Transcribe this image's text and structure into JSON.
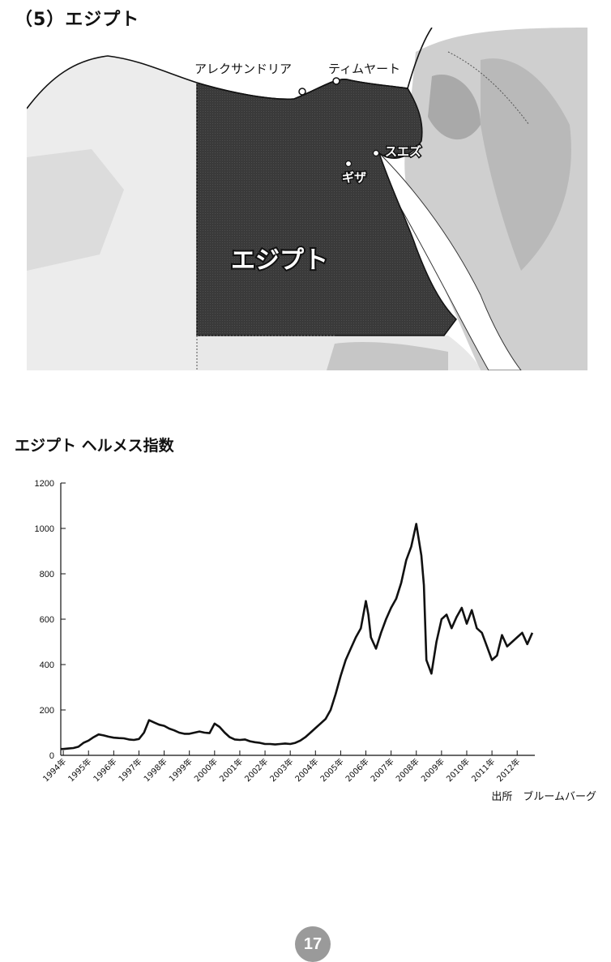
{
  "section": {
    "title": "（5）エジプト"
  },
  "map": {
    "country_label": "エジプト",
    "cities": {
      "alexandria": "アレクサンドリア",
      "timyart": "ティムヤート",
      "suez": "スエズ",
      "giza": "ギザ"
    }
  },
  "chart": {
    "title": "エジプト ヘルメス指数"
  },
  "chart_data": {
    "type": "line",
    "title": "エジプト ヘルメス指数",
    "xlabel": "",
    "ylabel": "",
    "ylim": [
      0,
      1200
    ],
    "yticks": [
      0,
      200,
      400,
      600,
      800,
      1000,
      1200
    ],
    "xlim": [
      1993.9,
      2012.7
    ],
    "xticks": [
      "1994年",
      "1995年",
      "1996年",
      "1997年",
      "1998年",
      "1999年",
      "2000年",
      "2001年",
      "2002年",
      "2003年",
      "2004年",
      "2005年",
      "2006年",
      "2007年",
      "2008年",
      "2009年",
      "2010年",
      "2011年",
      "2012年"
    ],
    "grid": false,
    "series": [
      {
        "x": [
          1993.9,
          1994.0,
          1994.2,
          1994.4,
          1994.6,
          1994.8,
          1995.0,
          1995.2,
          1995.4,
          1995.6,
          1995.8,
          1996.0,
          1996.2,
          1996.4,
          1996.6,
          1996.8,
          1997.0,
          1997.2,
          1997.4,
          1997.6,
          1997.8,
          1998.0,
          1998.2,
          1998.4,
          1998.6,
          1998.8,
          1999.0,
          1999.2,
          1999.4,
          1999.6,
          1999.8,
          2000.0,
          2000.2,
          2000.4,
          2000.6,
          2000.8,
          2001.0,
          2001.2,
          2001.4,
          2001.6,
          2001.8,
          2002.0,
          2002.2,
          2002.4,
          2002.6,
          2002.8,
          2003.0,
          2003.2,
          2003.4,
          2003.6,
          2003.8,
          2004.0,
          2004.2,
          2004.4,
          2004.6,
          2004.8,
          2005.0,
          2005.2,
          2005.4,
          2005.6,
          2005.8,
          2006.0,
          2006.1,
          2006.2,
          2006.4,
          2006.6,
          2006.8,
          2007.0,
          2007.2,
          2007.4,
          2007.6,
          2007.8,
          2008.0,
          2008.2,
          2008.3,
          2008.4,
          2008.6,
          2008.8,
          2009.0,
          2009.2,
          2009.4,
          2009.6,
          2009.8,
          2010.0,
          2010.2,
          2010.4,
          2010.6,
          2010.8,
          2011.0,
          2011.2,
          2011.4,
          2011.6,
          2011.8,
          2012.0,
          2012.2,
          2012.4,
          2012.6
        ],
        "y": [
          28,
          28,
          30,
          32,
          38,
          55,
          65,
          80,
          92,
          88,
          82,
          78,
          76,
          75,
          70,
          68,
          72,
          100,
          155,
          145,
          135,
          130,
          118,
          110,
          100,
          95,
          95,
          100,
          105,
          100,
          98,
          140,
          125,
          100,
          80,
          70,
          68,
          70,
          62,
          58,
          55,
          50,
          50,
          48,
          50,
          52,
          50,
          55,
          65,
          80,
          100,
          120,
          140,
          160,
          200,
          270,
          350,
          420,
          470,
          520,
          560,
          680,
          620,
          520,
          470,
          540,
          600,
          650,
          690,
          760,
          860,
          920,
          1020,
          880,
          750,
          420,
          360,
          500,
          600,
          620,
          560,
          610,
          650,
          580,
          640,
          560,
          540,
          480,
          420,
          440,
          530,
          480,
          500,
          520,
          540,
          490,
          540
        ]
      }
    ],
    "source": "出所　ブルームバーグ"
  },
  "page": {
    "number": "17"
  }
}
